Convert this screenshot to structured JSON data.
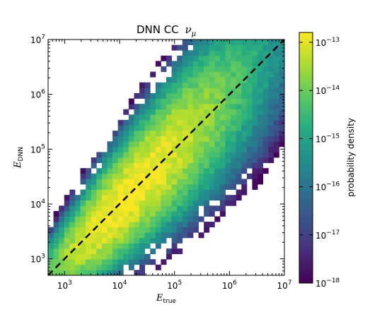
{
  "chart_data": {
    "type": "heatmap",
    "title": "DNN CC",
    "title_symbol": "ν",
    "title_subscript": "μ",
    "xlabel": "E",
    "xlabel_subscript": "true",
    "ylabel": "E",
    "ylabel_subscript": "DNN",
    "x_scale": "log",
    "y_scale": "log",
    "xlim": [
      500,
      10000000
    ],
    "ylim": [
      500,
      10000000
    ],
    "x_ticks": [
      {
        "value": 1000,
        "base": "10",
        "exp": "3"
      },
      {
        "value": 10000,
        "base": "10",
        "exp": "4"
      },
      {
        "value": 100000,
        "base": "10",
        "exp": "5"
      },
      {
        "value": 1000000,
        "base": "10",
        "exp": "6"
      },
      {
        "value": 10000000,
        "base": "10",
        "exp": "7"
      }
    ],
    "y_ticks": [
      {
        "value": 1000,
        "base": "10",
        "exp": "3"
      },
      {
        "value": 10000,
        "base": "10",
        "exp": "4"
      },
      {
        "value": 100000,
        "base": "10",
        "exp": "5"
      },
      {
        "value": 1000000,
        "base": "10",
        "exp": "6"
      },
      {
        "value": 10000000,
        "base": "10",
        "exp": "7"
      }
    ],
    "reference_line": {
      "style": "dashed",
      "color": "#000000",
      "from": [
        500,
        500
      ],
      "to": [
        10000000,
        10000000
      ]
    },
    "bins_per_axis": 44,
    "density_model": "peak along diagonal E_DNN = E_true, highest near 10^4, spread widens toward high energies",
    "colorbar": {
      "label": "probability density",
      "scale": "log",
      "range": [
        1e-18,
        1.6e-13
      ],
      "colormap": "viridis",
      "ticks": [
        {
          "value": 1e-13,
          "base": "10",
          "exp": "−13"
        },
        {
          "value": 1e-14,
          "base": "10",
          "exp": "−14"
        },
        {
          "value": 1e-15,
          "base": "10",
          "exp": "−15"
        },
        {
          "value": 1e-16,
          "base": "10",
          "exp": "−16"
        },
        {
          "value": 1e-17,
          "base": "10",
          "exp": "−17"
        },
        {
          "value": 1e-18,
          "base": "10",
          "exp": "−18"
        }
      ]
    },
    "grid": false,
    "legend": "none"
  }
}
